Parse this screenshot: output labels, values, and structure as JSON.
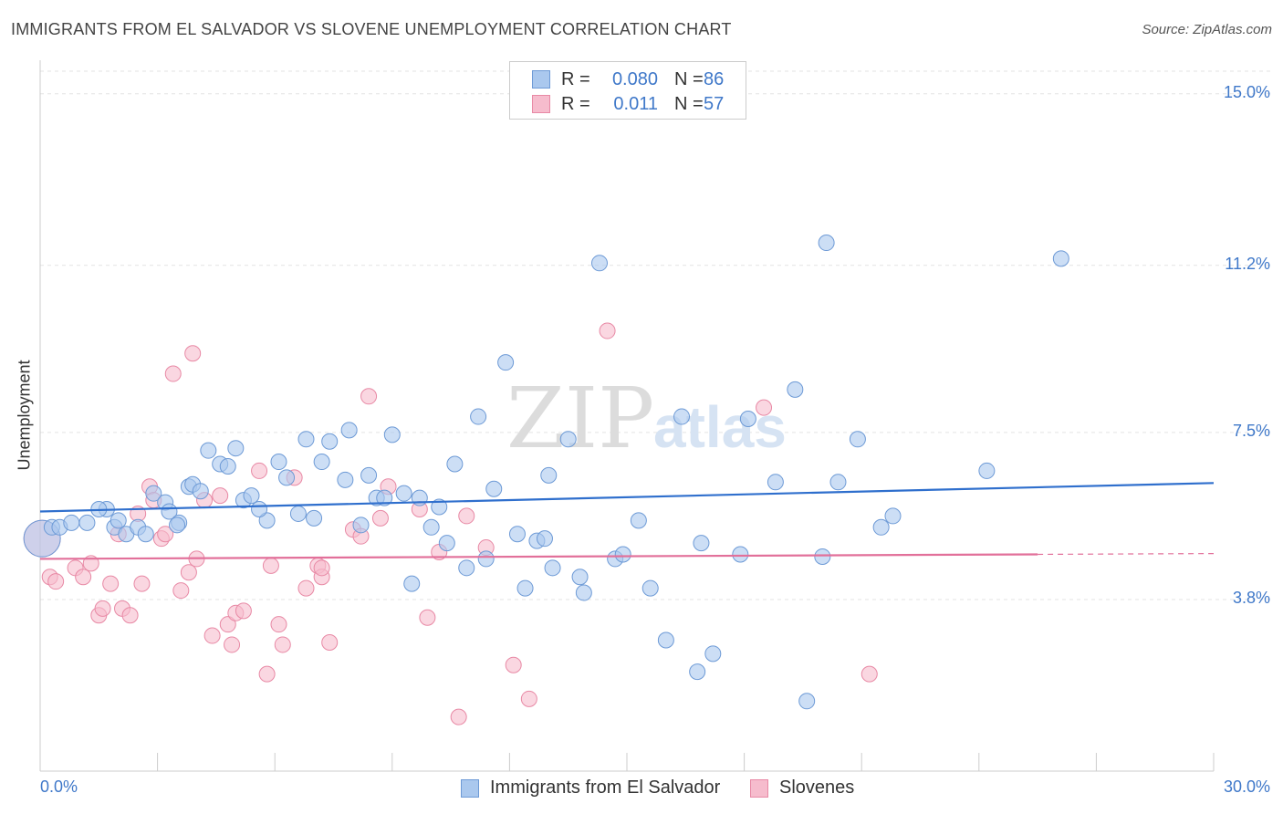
{
  "header": {
    "title": "IMMIGRANTS FROM EL SALVADOR VS SLOVENE UNEMPLOYMENT CORRELATION CHART",
    "source": "Source: ZipAtlas.com"
  },
  "legend": {
    "rows": [
      {
        "r_label": "R =",
        "r_value": "0.080",
        "n_label": "N =",
        "n_value": "86"
      },
      {
        "r_label": "R =",
        "r_value": "0.011",
        "n_label": "N =",
        "n_value": "57"
      }
    ]
  },
  "watermark": {
    "part1": "ZIP",
    "part2": "atlas"
  },
  "colors": {
    "blue_fill": "#aac8ee",
    "blue_stroke": "#6d9ad6",
    "blue_line": "#2f6fcd",
    "pink_fill": "#f6bccd",
    "pink_stroke": "#e889a5",
    "pink_line": "#e2709a",
    "tick_text": "#3f78c9"
  },
  "chart_data": {
    "type": "scatter",
    "title": "IMMIGRANTS FROM EL SALVADOR VS SLOVENE UNEMPLOYMENT CORRELATION CHART",
    "xlabel": "",
    "ylabel": "Unemployment",
    "xlim": [
      0,
      30
    ],
    "ylim": [
      0,
      15.5
    ],
    "x_tick_labels": [
      "0.0%",
      "30.0%"
    ],
    "y_ticks": [
      3.8,
      7.5,
      11.2,
      15.0
    ],
    "y_tick_labels": [
      "3.8%",
      "7.5%",
      "11.2%",
      "15.0%"
    ],
    "grid": true,
    "legend_position": "top-center",
    "series": [
      {
        "name": "Immigrants from El Salvador",
        "color": "#aac8ee",
        "trend": {
          "x": [
            0,
            30
          ],
          "y": [
            5.75,
            6.38
          ]
        },
        "points": [
          [
            0.05,
            5.15
          ],
          [
            0.3,
            5.4
          ],
          [
            0.5,
            5.4
          ],
          [
            0.8,
            5.5
          ],
          [
            1.2,
            5.5
          ],
          [
            1.7,
            5.8
          ],
          [
            1.5,
            5.8
          ],
          [
            1.9,
            5.4
          ],
          [
            2.2,
            5.25
          ],
          [
            2.0,
            5.55
          ],
          [
            2.5,
            5.4
          ],
          [
            2.7,
            5.25
          ],
          [
            2.9,
            6.15
          ],
          [
            3.2,
            5.95
          ],
          [
            3.3,
            5.75
          ],
          [
            3.55,
            5.5
          ],
          [
            3.8,
            6.3
          ],
          [
            3.9,
            6.35
          ],
          [
            4.1,
            6.2
          ],
          [
            4.3,
            7.1
          ],
          [
            4.6,
            6.8
          ],
          [
            4.8,
            6.75
          ],
          [
            5.0,
            7.15
          ],
          [
            5.2,
            6.0
          ],
          [
            5.4,
            6.1
          ],
          [
            5.8,
            5.55
          ],
          [
            5.6,
            5.8
          ],
          [
            6.1,
            6.85
          ],
          [
            6.3,
            6.5
          ],
          [
            6.6,
            5.7
          ],
          [
            6.8,
            7.35
          ],
          [
            7.0,
            5.6
          ],
          [
            7.2,
            6.85
          ],
          [
            7.4,
            7.3
          ],
          [
            7.8,
            6.45
          ],
          [
            7.9,
            7.55
          ],
          [
            8.2,
            5.45
          ],
          [
            8.4,
            6.55
          ],
          [
            8.6,
            6.05
          ],
          [
            8.8,
            6.05
          ],
          [
            9.0,
            7.45
          ],
          [
            9.3,
            6.15
          ],
          [
            9.5,
            4.15
          ],
          [
            9.7,
            6.05
          ],
          [
            10.0,
            5.4
          ],
          [
            10.2,
            5.85
          ],
          [
            10.4,
            5.05
          ],
          [
            10.6,
            6.8
          ],
          [
            10.9,
            4.5
          ],
          [
            11.2,
            7.85
          ],
          [
            11.4,
            4.7
          ],
          [
            11.6,
            6.25
          ],
          [
            11.9,
            9.05
          ],
          [
            12.2,
            5.25
          ],
          [
            12.4,
            4.05
          ],
          [
            12.7,
            5.1
          ],
          [
            13.0,
            6.55
          ],
          [
            13.1,
            4.5
          ],
          [
            13.5,
            7.35
          ],
          [
            13.8,
            4.3
          ],
          [
            13.9,
            3.95
          ],
          [
            14.3,
            11.25
          ],
          [
            14.7,
            4.7
          ],
          [
            14.9,
            4.8
          ],
          [
            15.3,
            5.55
          ],
          [
            15.6,
            4.05
          ],
          [
            16.0,
            2.9
          ],
          [
            16.4,
            7.85
          ],
          [
            16.8,
            2.2
          ],
          [
            16.9,
            5.05
          ],
          [
            17.2,
            2.6
          ],
          [
            17.9,
            4.8
          ],
          [
            18.1,
            7.8
          ],
          [
            18.8,
            6.4
          ],
          [
            19.3,
            8.45
          ],
          [
            19.6,
            1.55
          ],
          [
            20.1,
            11.7
          ],
          [
            20.0,
            4.75
          ],
          [
            20.4,
            6.4
          ],
          [
            20.9,
            7.35
          ],
          [
            21.5,
            5.4
          ],
          [
            21.8,
            5.65
          ],
          [
            24.2,
            6.65
          ],
          [
            26.1,
            11.35
          ],
          [
            12.9,
            5.15
          ],
          [
            3.5,
            5.45
          ]
        ]
      },
      {
        "name": "Slovenes",
        "color": "#f6bccd",
        "trend": {
          "x": [
            0,
            25.5
          ],
          "y": [
            4.7,
            4.8
          ],
          "dashed_to": 30
        },
        "points": [
          [
            0.05,
            5.15
          ],
          [
            0.25,
            4.3
          ],
          [
            0.4,
            4.2
          ],
          [
            0.9,
            4.5
          ],
          [
            1.1,
            4.3
          ],
          [
            1.3,
            4.6
          ],
          [
            1.5,
            3.45
          ],
          [
            1.6,
            3.6
          ],
          [
            1.8,
            4.15
          ],
          [
            2.0,
            5.25
          ],
          [
            2.1,
            3.6
          ],
          [
            2.3,
            3.45
          ],
          [
            2.5,
            5.7
          ],
          [
            2.6,
            4.15
          ],
          [
            2.8,
            6.3
          ],
          [
            2.9,
            6.0
          ],
          [
            3.1,
            5.15
          ],
          [
            3.2,
            5.25
          ],
          [
            3.4,
            8.8
          ],
          [
            3.6,
            4.0
          ],
          [
            3.8,
            4.4
          ],
          [
            3.9,
            9.25
          ],
          [
            4.0,
            4.7
          ],
          [
            4.2,
            6.0
          ],
          [
            4.4,
            3.0
          ],
          [
            4.6,
            6.1
          ],
          [
            4.8,
            3.25
          ],
          [
            4.9,
            2.8
          ],
          [
            5.0,
            3.5
          ],
          [
            5.2,
            3.55
          ],
          [
            5.6,
            6.65
          ],
          [
            5.8,
            2.15
          ],
          [
            5.9,
            4.55
          ],
          [
            6.1,
            3.25
          ],
          [
            6.2,
            2.8
          ],
          [
            6.5,
            6.5
          ],
          [
            6.8,
            4.05
          ],
          [
            7.1,
            4.55
          ],
          [
            7.2,
            4.3
          ],
          [
            7.4,
            2.85
          ],
          [
            8.0,
            5.35
          ],
          [
            8.2,
            5.2
          ],
          [
            8.4,
            8.3
          ],
          [
            8.7,
            5.6
          ],
          [
            8.9,
            6.3
          ],
          [
            9.7,
            5.8
          ],
          [
            9.9,
            3.4
          ],
          [
            10.2,
            4.85
          ],
          [
            10.7,
            1.2
          ],
          [
            11.4,
            4.95
          ],
          [
            12.1,
            2.35
          ],
          [
            12.5,
            1.6
          ],
          [
            14.5,
            9.75
          ],
          [
            18.5,
            8.05
          ],
          [
            21.2,
            2.15
          ],
          [
            10.9,
            5.65
          ],
          [
            7.2,
            4.5
          ]
        ]
      }
    ]
  },
  "bottom_legend": {
    "items": [
      {
        "label": "Immigrants from El Salvador"
      },
      {
        "label": "Slovenes"
      }
    ]
  }
}
